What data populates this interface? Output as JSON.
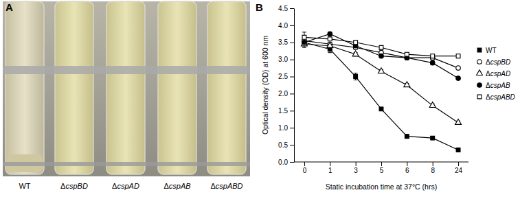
{
  "figure": {
    "panel_labels": [
      "A",
      "B"
    ],
    "tube_labels": [
      "WT",
      "ΔcspBD",
      "ΔcspAD",
      "ΔcspAB",
      "ΔcspABD"
    ]
  },
  "chart_data": {
    "type": "line",
    "x_label": "Static incubation time at 37°C (hrs)",
    "y_label": "Optical density (OD) at 600 nm",
    "categories": [
      "0",
      "1",
      "3",
      "5",
      "6",
      "8",
      "24"
    ],
    "ylim": [
      0,
      4.5
    ],
    "yticks": [
      {
        "value": 0,
        "label": "0.0"
      },
      {
        "value": 0.5,
        "label": "0.5"
      },
      {
        "value": 1,
        "label": "1.0"
      },
      {
        "value": 1.5,
        "label": "1.5"
      },
      {
        "value": 2,
        "label": "2.0"
      },
      {
        "value": 2.5,
        "label": "2.5"
      },
      {
        "value": 3,
        "label": "3.0"
      },
      {
        "value": 3.5,
        "label": "3.5"
      },
      {
        "value": 4,
        "label": "4.0"
      },
      {
        "value": 4.5,
        "label": "4.5"
      }
    ],
    "legend": "right",
    "series": [
      {
        "name": "WT",
        "color": "#000000",
        "marker": "square-filled",
        "values": [
          3.5,
          3.3,
          2.5,
          1.55,
          0.75,
          0.7,
          0.35
        ],
        "errors": [
          0.15,
          0.1,
          0.1,
          0.05,
          0.05,
          0.05,
          0.05
        ]
      },
      {
        "name": "ΔcspBD",
        "color": "#000000",
        "marker": "circle-open",
        "values": [
          3.55,
          3.45,
          3.35,
          3.2,
          3.05,
          3.05,
          2.75
        ],
        "errors": [
          0.05,
          0.05,
          0.05,
          0.05,
          0.05,
          0.05,
          0.05
        ]
      },
      {
        "name": "ΔcspAD",
        "color": "#000000",
        "marker": "triangle-open",
        "values": [
          3.45,
          3.4,
          3.15,
          2.65,
          2.25,
          1.65,
          1.15
        ],
        "errors": [
          0.05,
          0.05,
          0.05,
          0.05,
          0.05,
          0.05,
          0.05
        ]
      },
      {
        "name": "ΔcspAB",
        "color": "#000000",
        "marker": "circle-filled",
        "values": [
          3.5,
          3.75,
          3.4,
          3.1,
          3.05,
          2.9,
          2.45
        ],
        "errors": [
          0.05,
          0.05,
          0.05,
          0.05,
          0.05,
          0.05,
          0.05
        ]
      },
      {
        "name": "ΔcspABD",
        "color": "#000000",
        "marker": "square-open",
        "values": [
          3.65,
          3.6,
          3.5,
          3.35,
          3.15,
          3.1,
          3.1
        ],
        "errors": [
          0.15,
          0.05,
          0.05,
          0.05,
          0.05,
          0.05,
          0.05
        ]
      }
    ]
  }
}
